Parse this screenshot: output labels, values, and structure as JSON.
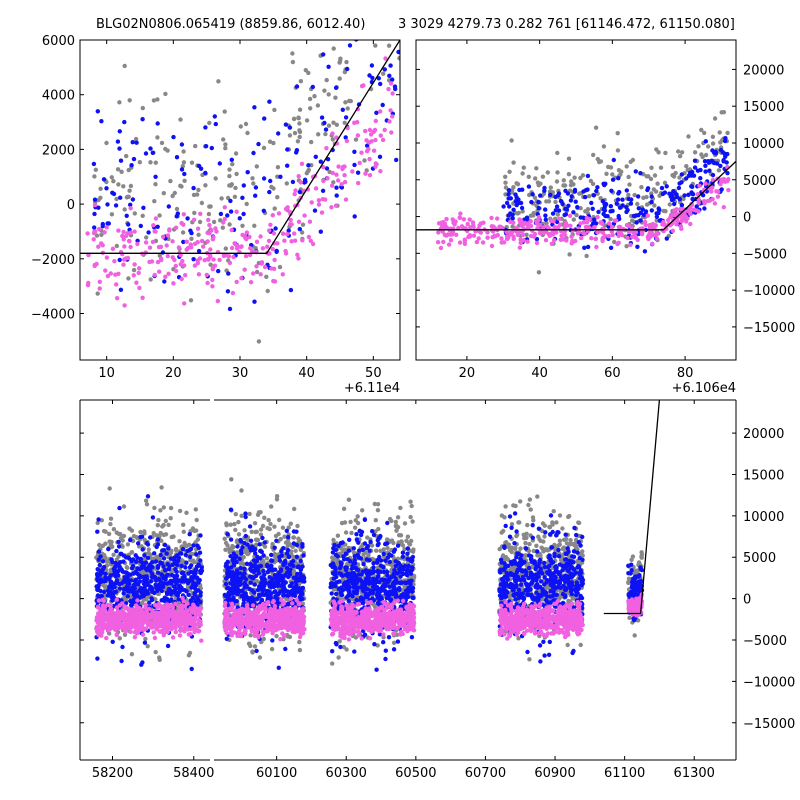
{
  "title_left": "BLG02N0806.065419 (8859.86, 6012.40)",
  "title_right": "3 3029 4279.73 0.282 761 [61146.472, 61150.080]",
  "colors": {
    "gray": "#888888",
    "blue": "#0d12f5",
    "pink": "#f060e0",
    "line": "#000000"
  },
  "chart_data": [
    {
      "type": "scatter",
      "name": "zoom-left",
      "offset_label": "+6.11e4",
      "xlim": [
        6,
        54
      ],
      "ylim": [
        -5700,
        6000
      ],
      "xticks": [
        10,
        20,
        30,
        40,
        50
      ],
      "yticks": [
        -4000,
        -2000,
        0,
        2000,
        4000,
        6000
      ],
      "ytick_side": "left",
      "model_line": [
        [
          6,
          -1800
        ],
        [
          34,
          -1800
        ],
        [
          54,
          6000
        ]
      ],
      "series": [
        {
          "name": "gray",
          "n": 260,
          "x_range": [
            8,
            54
          ],
          "base": 400,
          "spread": 2500,
          "rise_from": 34,
          "rise_slope": 330
        },
        {
          "name": "blue",
          "n": 210,
          "x_range": [
            8,
            54
          ],
          "base": -300,
          "spread": 2700,
          "rise_from": 34,
          "rise_slope": 300
        },
        {
          "name": "pink",
          "n": 320,
          "x_range": [
            7,
            53
          ],
          "base": -1800,
          "spread": 1100,
          "rise_from": 34,
          "rise_slope": 290
        }
      ]
    },
    {
      "type": "scatter",
      "name": "zoom-right",
      "offset_label": "+6.106e4",
      "xlim": [
        6,
        94
      ],
      "ylim": [
        -19500,
        24000
      ],
      "xticks": [
        20,
        40,
        60,
        80
      ],
      "yticks": [
        -15000,
        -10000,
        -5000,
        0,
        5000,
        10000,
        15000,
        20000
      ],
      "ytick_side": "right",
      "model_line": [
        [
          6,
          -1800
        ],
        [
          74,
          -1800
        ],
        [
          94,
          7500
        ]
      ],
      "series": [
        {
          "name": "gray",
          "n": 280,
          "x_range": [
            30,
            92
          ],
          "base": 2500,
          "spread": 4500,
          "rise_from": 74,
          "rise_slope": 450
        },
        {
          "name": "blue",
          "n": 300,
          "x_range": [
            30,
            92
          ],
          "base": 800,
          "spread": 3200,
          "rise_from": 74,
          "rise_slope": 420
        },
        {
          "name": "pink",
          "n": 380,
          "x_range": [
            12,
            92
          ],
          "base": -1900,
          "spread": 1300,
          "rise_from": 74,
          "rise_slope": 380
        }
      ]
    },
    {
      "type": "scatter",
      "name": "full-lightcurve",
      "ylim": [
        -19500,
        24000
      ],
      "yticks": [
        -15000,
        -10000,
        -5000,
        0,
        5000,
        10000,
        15000,
        20000
      ],
      "ytick_side": "right",
      "segments": [
        {
          "xlim": [
            58120,
            58440
          ],
          "xticks": [
            58200,
            58400
          ],
          "seasons": [
            [
              58160,
              58420
            ]
          ]
        },
        {
          "xlim": [
            59920,
            61420
          ],
          "xticks": [
            60100,
            60300,
            60500,
            60700,
            60900,
            61100,
            61300
          ],
          "seasons": [
            [
              59950,
              60180
            ],
            [
              60255,
              60495
            ],
            [
              60740,
              60980
            ],
            [
              61110,
              61150
            ]
          ]
        }
      ],
      "model_line": [
        [
          61040,
          -1800
        ],
        [
          61146,
          -1800
        ],
        [
          61200,
          24000
        ]
      ],
      "series": [
        {
          "name": "gray",
          "base": 3000,
          "spread": 5500
        },
        {
          "name": "blue",
          "base": 1500,
          "spread": 4500
        },
        {
          "name": "pink",
          "base": -2500,
          "spread": 1300
        }
      ]
    }
  ]
}
